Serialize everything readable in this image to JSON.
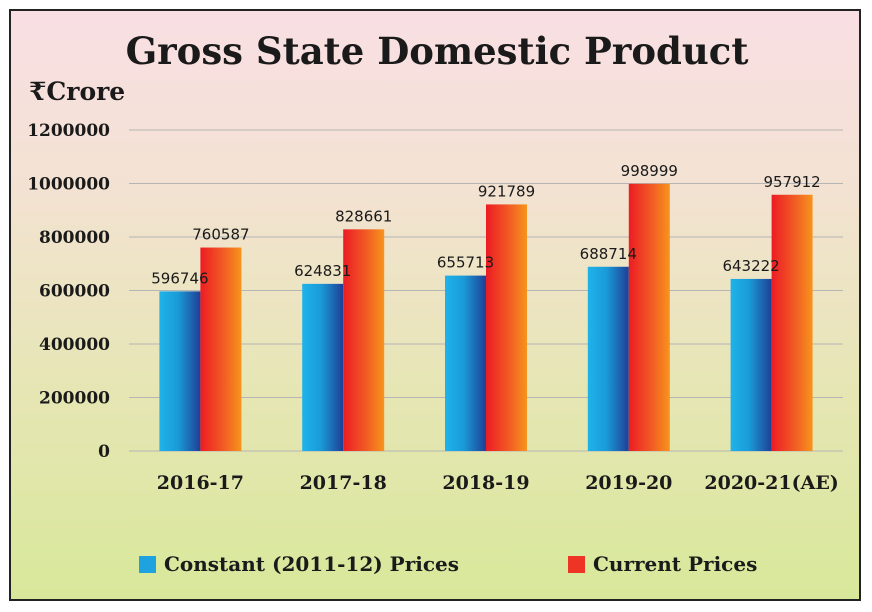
{
  "chart_data": {
    "type": "bar",
    "title": "Gross State Domestic Product",
    "ylabel": "₹Crore",
    "xlabel": "",
    "categories": [
      "2016-17",
      "2017-18",
      "2018-19",
      "2019-20",
      "2020-21(AE)"
    ],
    "series": [
      {
        "name": "Constant (2011-12) Prices",
        "values": [
          596746,
          624831,
          655713,
          688714,
          643222
        ],
        "color": "#1fa3e0"
      },
      {
        "name": "Current Prices",
        "values": [
          760587,
          828661,
          921789,
          998999,
          957912
        ],
        "color": "#ee3424"
      }
    ],
    "ylim": [
      0,
      1200000
    ],
    "yticks": [
      "0",
      "200000",
      "400000",
      "600000",
      "800000",
      "1000000",
      "1200000"
    ],
    "grid": true,
    "legend_position": "bottom"
  }
}
